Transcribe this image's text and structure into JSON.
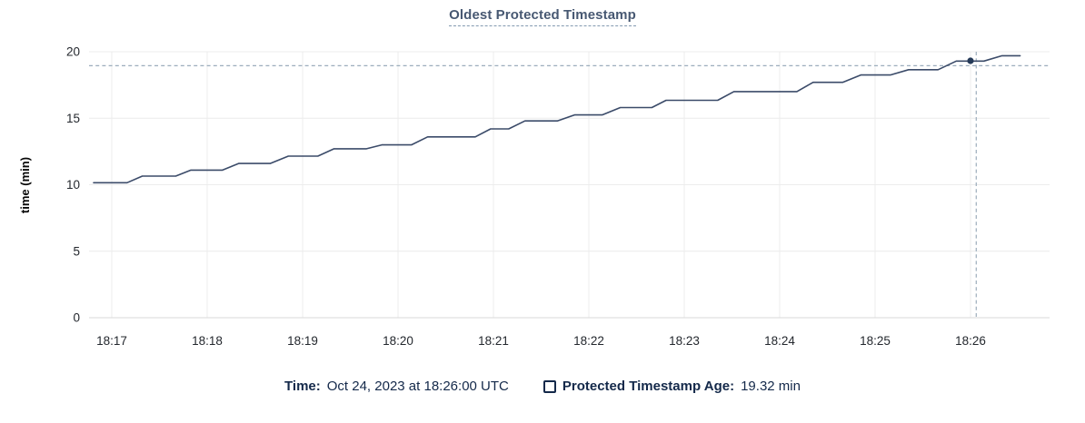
{
  "title": "Oldest Protected Timestamp",
  "tooltip": {
    "time_label": "Time:",
    "time_value": "Oct 24, 2023 at 18:26:00 UTC",
    "series_label": "Protected Timestamp Age:",
    "series_value": "19.32 min"
  },
  "colors": {
    "title": "#475872",
    "title_underline": "#8299b0",
    "series_line": "#3b4b69",
    "crosshair": "#9cadbc",
    "hover_dot": "#253a58",
    "legend_text": "#14294a",
    "gridline": "#ececec",
    "zero_line": "#d9d9d9"
  },
  "chart_data": {
    "type": "line",
    "title": "Oldest Protected Timestamp",
    "xlabel": "",
    "ylabel": "time (min)",
    "x_unit": "minutes after 18:17 UTC",
    "x_ticks": [
      "18:17",
      "18:18",
      "18:19",
      "18:20",
      "18:21",
      "18:22",
      "18:23",
      "18:24",
      "18:25",
      "18:26"
    ],
    "y_ticks": [
      0,
      5,
      10,
      15,
      20
    ],
    "ylim": [
      0,
      20
    ],
    "xlim_minutes": [
      -0.24,
      9.83
    ],
    "grid": true,
    "legend_position": "bottom",
    "series": [
      {
        "name": "Protected Timestamp Age",
        "points": [
          [
            -0.19,
            10.15
          ],
          [
            0.16,
            10.15
          ],
          [
            0.32,
            10.65
          ],
          [
            0.67,
            10.65
          ],
          [
            0.83,
            11.1
          ],
          [
            1.16,
            11.1
          ],
          [
            1.33,
            11.6
          ],
          [
            1.66,
            11.6
          ],
          [
            1.85,
            12.15
          ],
          [
            2.16,
            12.15
          ],
          [
            2.33,
            12.7
          ],
          [
            2.67,
            12.7
          ],
          [
            2.83,
            13.0
          ],
          [
            3.14,
            13.0
          ],
          [
            3.31,
            13.6
          ],
          [
            3.81,
            13.6
          ],
          [
            3.97,
            14.2
          ],
          [
            4.16,
            14.2
          ],
          [
            4.33,
            14.8
          ],
          [
            4.67,
            14.8
          ],
          [
            4.85,
            15.25
          ],
          [
            5.14,
            15.25
          ],
          [
            5.33,
            15.8
          ],
          [
            5.66,
            15.8
          ],
          [
            5.81,
            16.35
          ],
          [
            6.35,
            16.35
          ],
          [
            6.52,
            17.0
          ],
          [
            7.18,
            17.0
          ],
          [
            7.35,
            17.7
          ],
          [
            7.66,
            17.7
          ],
          [
            7.85,
            18.25
          ],
          [
            8.16,
            18.25
          ],
          [
            8.35,
            18.65
          ],
          [
            8.66,
            18.65
          ],
          [
            8.85,
            19.3
          ],
          [
            9.14,
            19.3
          ],
          [
            9.33,
            19.7
          ],
          [
            9.52,
            19.7
          ]
        ]
      }
    ],
    "crosshair": {
      "x_minutes": 9.06,
      "y_value": 18.95,
      "point": [
        9.0,
        19.32
      ]
    }
  }
}
